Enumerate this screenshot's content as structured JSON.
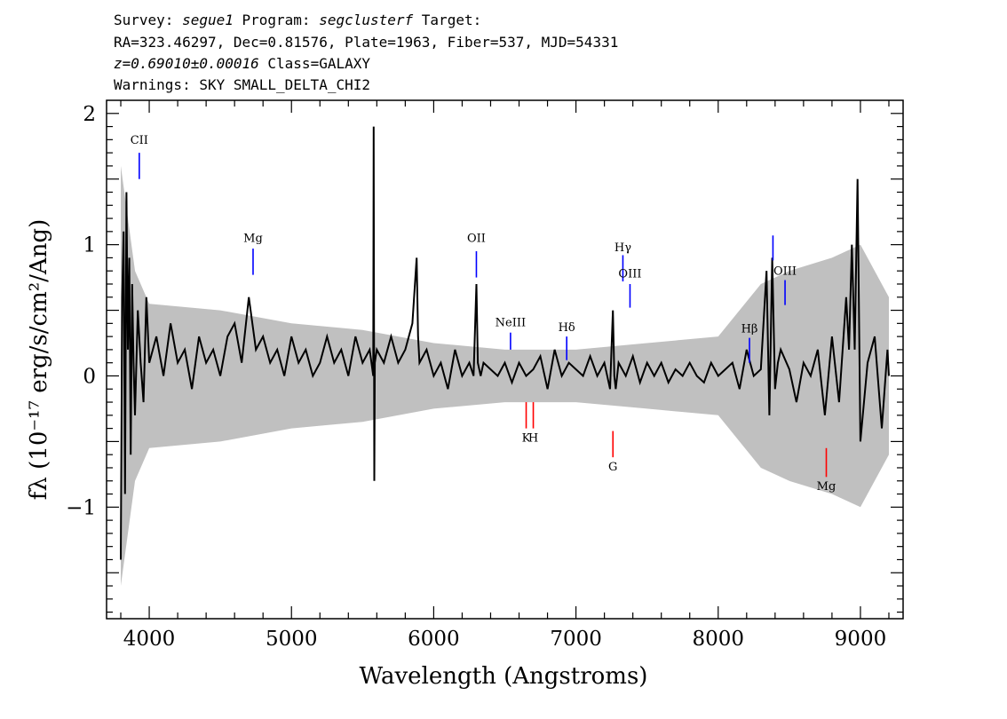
{
  "header": {
    "line1_prefix": "Survey: ",
    "survey": "segue1",
    "line1_mid": " Program: ",
    "program": "segclusterf",
    "line1_suffix": " Target:",
    "line2": "RA=323.46297, Dec=0.81576, Plate=1963, Fiber=537, MJD=54331",
    "redshift": "z=0.69010±0.00016",
    "class_text": " Class=GALAXY",
    "warnings": "Warnings: SKY SMALL_DELTA_CHI2"
  },
  "chart_data": {
    "type": "line",
    "xlabel": "Wavelength (Angstroms)",
    "ylabel": "fλ (10⁻¹⁷ erg/s/cm²/Ang)",
    "xlim": [
      3700,
      9300
    ],
    "ylim": [
      -1.85,
      2.1
    ],
    "x_ticks": [
      4000,
      5000,
      6000,
      7000,
      8000,
      9000
    ],
    "x_tick_labels": [
      "4000",
      "5000",
      "6000",
      "7000",
      "8000",
      "9000"
    ],
    "y_ticks": [
      -1,
      0,
      1,
      2
    ],
    "y_tick_labels": [
      "−1",
      "0",
      "1",
      "2"
    ],
    "series": [
      {
        "role": "flux",
        "color": "#000000",
        "x": [
          3800,
          3810,
          3820,
          3830,
          3840,
          3850,
          3860,
          3870,
          3880,
          3890,
          3900,
          3920,
          3940,
          3960,
          3980,
          4000,
          4050,
          4100,
          4150,
          4200,
          4250,
          4300,
          4350,
          4400,
          4450,
          4500,
          4550,
          4600,
          4650,
          4700,
          4750,
          4800,
          4850,
          4900,
          4950,
          5000,
          5050,
          5100,
          5150,
          5200,
          5250,
          5300,
          5350,
          5400,
          5450,
          5500,
          5550,
          5575,
          5578,
          5582,
          5586,
          5600,
          5650,
          5700,
          5750,
          5800,
          5850,
          5880,
          5890,
          5900,
          5950,
          6000,
          6050,
          6100,
          6150,
          6200,
          6250,
          6280,
          6300,
          6310,
          6330,
          6350,
          6400,
          6450,
          6500,
          6550,
          6600,
          6650,
          6700,
          6750,
          6800,
          6850,
          6900,
          6950,
          7000,
          7050,
          7100,
          7150,
          7200,
          7240,
          7260,
          7270,
          7280,
          7300,
          7350,
          7400,
          7450,
          7500,
          7550,
          7600,
          7650,
          7700,
          7750,
          7800,
          7850,
          7900,
          7950,
          8000,
          8050,
          8100,
          8150,
          8200,
          8250,
          8300,
          8340,
          8360,
          8380,
          8400,
          8420,
          8440,
          8500,
          8550,
          8600,
          8650,
          8700,
          8750,
          8800,
          8850,
          8900,
          8920,
          8940,
          8960,
          8980,
          9000,
          9050,
          9100,
          9150,
          9190,
          9200
        ],
        "y": [
          -1.4,
          0.6,
          1.1,
          -0.9,
          1.4,
          0.2,
          0.9,
          -0.6,
          0.7,
          0.1,
          -0.3,
          0.5,
          0.1,
          -0.2,
          0.6,
          0.1,
          0.3,
          0.0,
          0.4,
          0.1,
          0.2,
          -0.1,
          0.3,
          0.1,
          0.2,
          0.0,
          0.3,
          0.4,
          0.1,
          0.6,
          0.2,
          0.3,
          0.1,
          0.2,
          0.0,
          0.3,
          0.1,
          0.2,
          0.0,
          0.1,
          0.3,
          0.1,
          0.2,
          0.0,
          0.3,
          0.1,
          0.2,
          0.0,
          1.9,
          -0.8,
          0.1,
          0.2,
          0.1,
          0.3,
          0.1,
          0.2,
          0.4,
          0.9,
          0.3,
          0.1,
          0.2,
          0.0,
          0.1,
          -0.1,
          0.2,
          0.0,
          0.1,
          0.0,
          0.7,
          0.1,
          0.0,
          0.1,
          0.05,
          0.0,
          0.1,
          -0.05,
          0.1,
          0.0,
          0.05,
          0.15,
          -0.1,
          0.2,
          0.0,
          0.1,
          0.05,
          0.0,
          0.15,
          0.0,
          0.1,
          -0.1,
          0.5,
          0.0,
          -0.1,
          0.1,
          0.0,
          0.15,
          -0.05,
          0.1,
          0.0,
          0.1,
          -0.05,
          0.05,
          0.0,
          0.1,
          0.0,
          -0.05,
          0.1,
          0.0,
          0.05,
          0.1,
          -0.1,
          0.2,
          0.0,
          0.05,
          0.8,
          -0.3,
          0.9,
          -0.1,
          0.1,
          0.2,
          0.05,
          -0.2,
          0.1,
          0.0,
          0.2,
          -0.3,
          0.3,
          -0.2,
          0.6,
          0.2,
          1.0,
          0.2,
          1.5,
          -0.5,
          0.1,
          0.3,
          -0.4,
          0.2,
          0.0
        ]
      },
      {
        "role": "uncertainty band",
        "color": "#c0c0c0",
        "x": [
          3800,
          3900,
          4000,
          4500,
          5000,
          5500,
          6000,
          6500,
          7000,
          7500,
          8000,
          8300,
          8500,
          8800,
          9000,
          9200
        ],
        "half_width": [
          1.6,
          0.8,
          0.55,
          0.5,
          0.4,
          0.35,
          0.25,
          0.2,
          0.2,
          0.25,
          0.3,
          0.7,
          0.8,
          0.9,
          1.0,
          0.6
        ]
      }
    ],
    "emission_lines": [
      {
        "label": "CII",
        "x": 3930,
        "y_label": 1.77,
        "y0": 1.5,
        "y1": 1.7
      },
      {
        "label": "Mg",
        "x": 4730,
        "y_label": 1.02,
        "y0": 0.77,
        "y1": 0.97
      },
      {
        "label": "OII",
        "x": 6300,
        "y_label": 1.02,
        "y0": 0.75,
        "y1": 0.95
      },
      {
        "label": "NeIII",
        "x": 6540,
        "y_label": 0.38,
        "y0": 0.2,
        "y1": 0.33
      },
      {
        "label": "Hδ",
        "x": 6935,
        "y_label": 0.34,
        "y0": 0.12,
        "y1": 0.3
      },
      {
        "label": "Hγ",
        "x": 7330,
        "y_label": 0.95,
        "y0": 0.72,
        "y1": 0.92
      },
      {
        "label": "OIII",
        "x": 7380,
        "y_label": 0.75,
        "y0": 0.52,
        "y1": 0.7
      },
      {
        "label": "Hβ",
        "x": 8220,
        "y_label": 0.33,
        "y0": 0.1,
        "y1": 0.29
      },
      {
        "label": "OIII",
        "x": 8470,
        "y_label": 0.77,
        "y0": 0.54,
        "y1": 0.73
      },
      {
        "label": "",
        "x": 8385,
        "y_label": 1.07,
        "y0": 0.88,
        "y1": 1.07
      }
    ],
    "absorption_lines": [
      {
        "label": "K",
        "x": 6650,
        "y_label": -0.5,
        "y0": -0.4,
        "y1": -0.2
      },
      {
        "label": "H",
        "x": 6700,
        "y_label": -0.5,
        "y0": -0.4,
        "y1": -0.2
      },
      {
        "label": "G",
        "x": 7260,
        "y_label": -0.72,
        "y0": -0.62,
        "y1": -0.42
      },
      {
        "label": "Mg",
        "x": 8760,
        "y_label": -0.87,
        "y0": -0.77,
        "y1": -0.55
      }
    ],
    "colors": {
      "flux": "#000000",
      "error": "#c0c0c0",
      "emission": "#0000ff",
      "absorption": "#ff0000"
    }
  }
}
